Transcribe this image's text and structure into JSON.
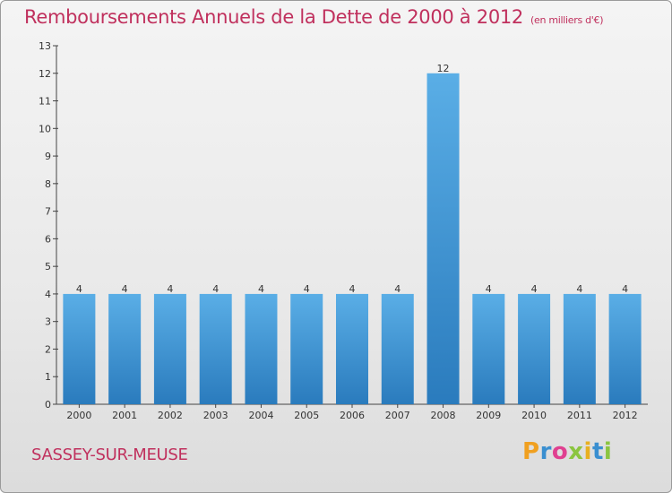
{
  "header": {
    "title": "Remboursements Annuels de la Dette de 2000 à 2012",
    "unit": "(en milliers d'€)"
  },
  "footer": {
    "commune": "SASSEY-SUR-MEUSE",
    "logo_text": "Proxiti"
  },
  "colors": {
    "title": "#c0305d",
    "bar_top": "#5aaee6",
    "bar_bottom": "#2a7bbd",
    "logo_letters": [
      "#f0a020",
      "#3a8fd0",
      "#e04090",
      "#8bc540",
      "#e8b020",
      "#3a8fd0",
      "#8bc540"
    ]
  },
  "chart_data": {
    "type": "bar",
    "title": "Remboursements Annuels de la Dette de 2000 à 2012",
    "unit": "(en milliers d'€)",
    "categories": [
      "2000",
      "2001",
      "2002",
      "2003",
      "2004",
      "2005",
      "2006",
      "2007",
      "2008",
      "2009",
      "2010",
      "2011",
      "2012"
    ],
    "values": [
      4,
      4,
      4,
      4,
      4,
      4,
      4,
      4,
      12,
      4,
      4,
      4,
      4
    ],
    "ylim": [
      0,
      13
    ],
    "yticks": [
      0,
      1,
      2,
      3,
      4,
      5,
      6,
      7,
      8,
      9,
      10,
      11,
      12,
      13
    ],
    "grid": false
  }
}
